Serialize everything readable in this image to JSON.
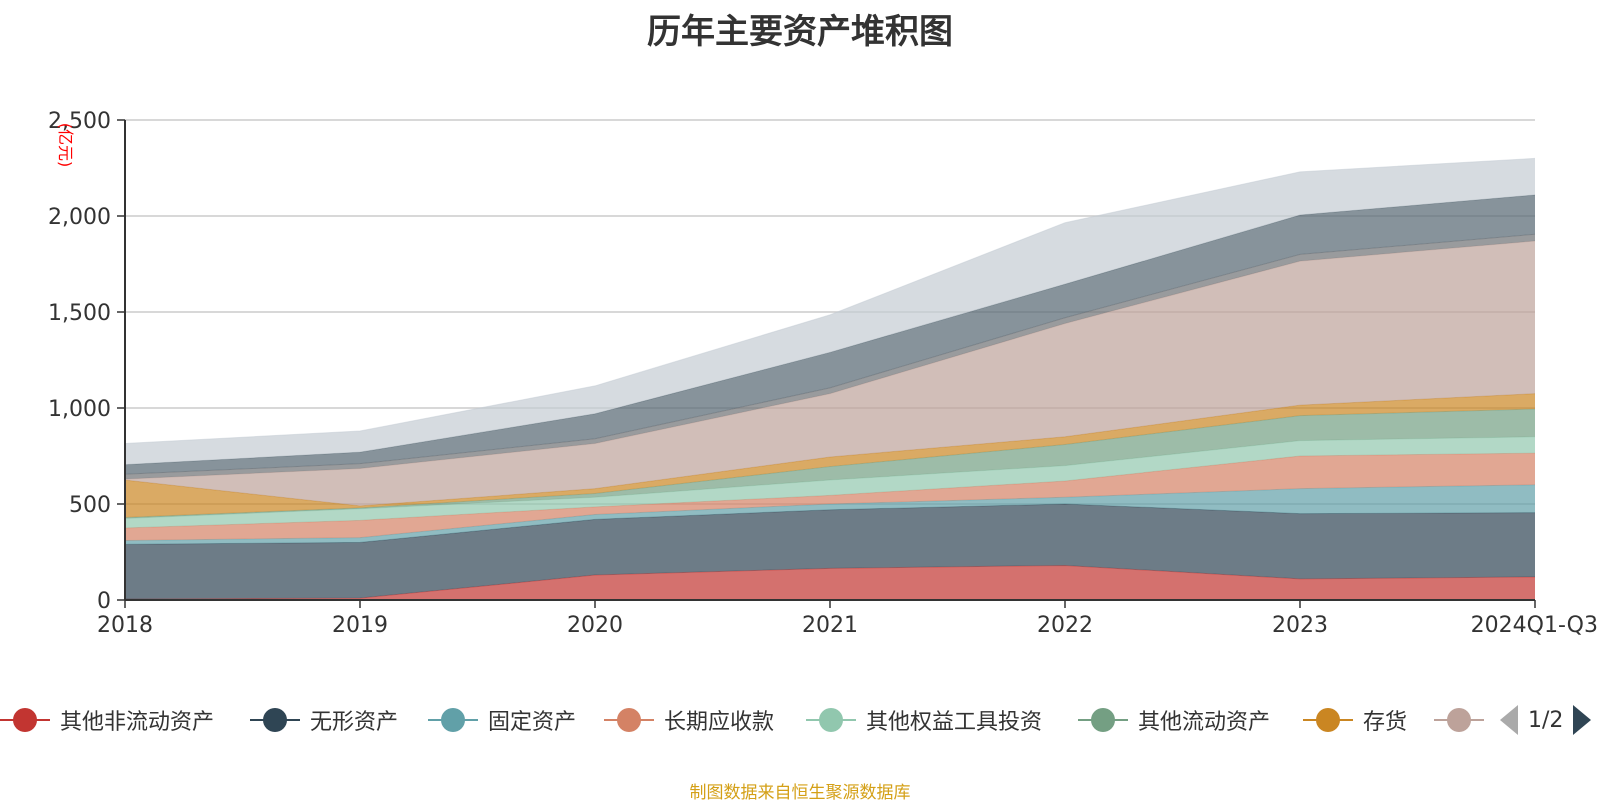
{
  "chart_data": {
    "type": "area",
    "stacked": true,
    "title": "历年主要资产堆积图",
    "ylabel": "(亿元)",
    "xlabel": "",
    "ylim": [
      0,
      2500
    ],
    "yticks": [
      0,
      500,
      1000,
      1500,
      2000,
      2500
    ],
    "ytick_labels": [
      "0",
      "500",
      "1,000",
      "1,500",
      "2,000",
      "2,500"
    ],
    "categories": [
      "2018",
      "2019",
      "2020",
      "2021",
      "2022",
      "2023",
      "2024Q1-Q3"
    ],
    "series": [
      {
        "name": "其他非流动资产",
        "color": "#c23531",
        "values": [
          5,
          10,
          130,
          165,
          180,
          110,
          120
        ]
      },
      {
        "name": "无形资产",
        "color": "#2f4554",
        "values": [
          285,
          290,
          290,
          305,
          320,
          340,
          335
        ]
      },
      {
        "name": "固定资产",
        "color": "#61a0a8",
        "values": [
          20,
          25,
          25,
          30,
          35,
          130,
          145
        ]
      },
      {
        "name": "长期应收款",
        "color": "#d48265",
        "values": [
          65,
          90,
          40,
          45,
          85,
          170,
          165
        ]
      },
      {
        "name": "其他权益工具投资",
        "color": "#91c7ae",
        "values": [
          50,
          60,
          50,
          80,
          80,
          80,
          85
        ]
      },
      {
        "name": "其他流动资产",
        "color": "#749f83",
        "values": [
          5,
          5,
          20,
          70,
          110,
          130,
          145
        ]
      },
      {
        "name": "存货",
        "color": "#ca8622",
        "values": [
          195,
          10,
          25,
          50,
          40,
          55,
          80
        ]
      },
      {
        "name": "",
        "color": "#bda29a",
        "values": [
          5,
          195,
          235,
          330,
          590,
          750,
          795
        ]
      },
      {
        "name": "",
        "color": "#6e7074",
        "values": [
          25,
          25,
          25,
          30,
          30,
          35,
          35
        ]
      },
      {
        "name": "",
        "color": "#546570",
        "values": [
          50,
          60,
          130,
          185,
          175,
          205,
          205
        ]
      },
      {
        "name": "",
        "color": "#c4ccd3",
        "values": [
          110,
          110,
          145,
          195,
          320,
          225,
          190
        ]
      }
    ],
    "legend_position": "bottom",
    "grid": true
  },
  "legend": {
    "visible_items": [
      "其他非流动资产",
      "无形资产",
      "固定资产",
      "长期应收款",
      "其他权益工具投资",
      "其他流动资产",
      "存货",
      ""
    ],
    "page": "1/2"
  },
  "source_note": "制图数据来自恒生聚源数据库"
}
